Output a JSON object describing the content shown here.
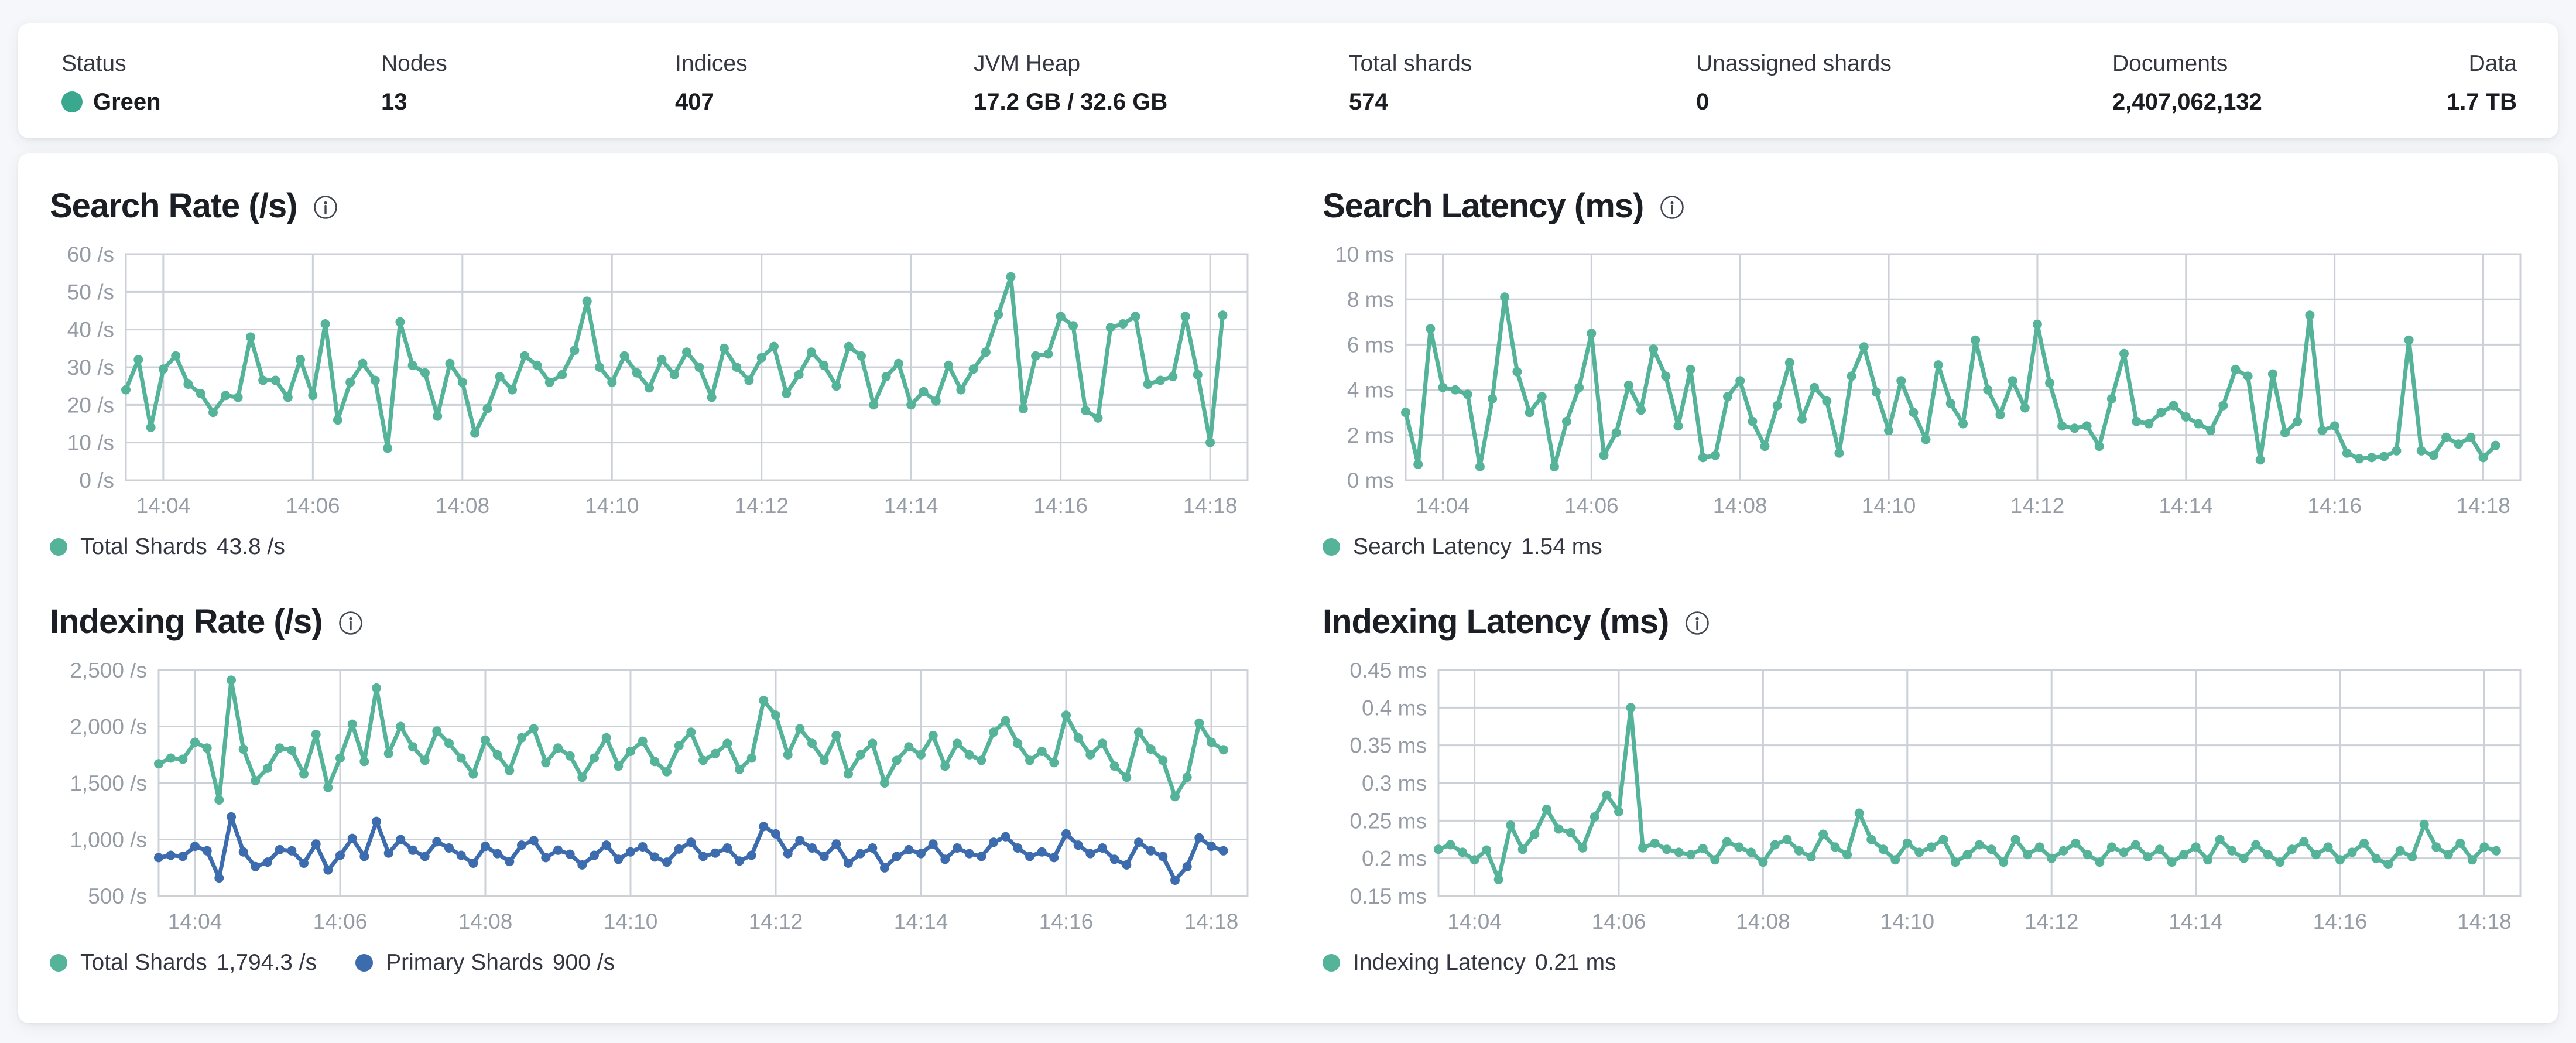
{
  "colors": {
    "teal": "#54B399",
    "blue": "#3D6CAE",
    "status_green": "#3AA78F",
    "grid": "#ccd0d7",
    "axis_text": "#969ca6",
    "legend_text": "#343741"
  },
  "summary": {
    "metrics": [
      {
        "label": "Status",
        "value": "Green"
      },
      {
        "label": "Nodes",
        "value": "13"
      },
      {
        "label": "Indices",
        "value": "407"
      },
      {
        "label": "JVM Heap",
        "value": "17.2 GB / 32.6 GB"
      },
      {
        "label": "Total shards",
        "value": "574"
      },
      {
        "label": "Unassigned shards",
        "value": "0"
      },
      {
        "label": "Documents",
        "value": "2,407,062,132"
      },
      {
        "label": "Data",
        "value": "1.7 TB"
      }
    ]
  },
  "chart_data": [
    {
      "type": "line",
      "title": "Search Rate (/s)",
      "x_ticks": [
        "14:04",
        "14:06",
        "14:08",
        "14:10",
        "14:12",
        "14:14",
        "14:16",
        "14:18"
      ],
      "x_tick_idx": [
        3,
        15,
        27,
        39,
        51,
        63,
        75,
        87
      ],
      "x_domain": 90,
      "ylim": [
        0,
        60
      ],
      "y_ticks": [
        0,
        10,
        20,
        30,
        40,
        50,
        60
      ],
      "y_tick_labels": [
        "0 /s",
        "10 /s",
        "20 /s",
        "30 /s",
        "40 /s",
        "50 /s",
        "60 /s"
      ],
      "grid": true,
      "legend_position": "bottom",
      "series": [
        {
          "name": "Total Shards",
          "color": "#54B399",
          "values": [
            24,
            32,
            14,
            29.5,
            33,
            25.5,
            23,
            18,
            22.5,
            22,
            38,
            26.5,
            26.5,
            22,
            32,
            22.5,
            41.5,
            16,
            26,
            31,
            26.5,
            8.5,
            42,
            30.5,
            28.5,
            17,
            31,
            26,
            12.5,
            19,
            27.5,
            24,
            33,
            30.5,
            26,
            28,
            34.5,
            47.5,
            30,
            26,
            33,
            28.5,
            24.5,
            32,
            28,
            34,
            30,
            22,
            35,
            30,
            26.5,
            32.5,
            35.5,
            23,
            28,
            34,
            30.5,
            25,
            35.5,
            33,
            20,
            27.5,
            31,
            20,
            23.5,
            21,
            30.5,
            24,
            29.5,
            34,
            44,
            54,
            19,
            33,
            33.5,
            43.5,
            41,
            18.5,
            16.5,
            40.5,
            41.5,
            43.5,
            25.5,
            26.5,
            27.5,
            43.5,
            28,
            10,
            43.8
          ]
        }
      ],
      "legend": [
        {
          "label": "Total Shards",
          "value": "43.8 /s"
        }
      ]
    },
    {
      "type": "line",
      "title": "Search Latency (ms)",
      "x_ticks": [
        "14:04",
        "14:06",
        "14:08",
        "14:10",
        "14:12",
        "14:14",
        "14:16",
        "14:18"
      ],
      "x_tick_idx": [
        3,
        15,
        27,
        39,
        51,
        63,
        75,
        87
      ],
      "x_domain": 90,
      "ylim": [
        0,
        10
      ],
      "y_ticks": [
        0,
        2,
        4,
        6,
        8,
        10
      ],
      "y_tick_labels": [
        "0 ms",
        "2 ms",
        "4 ms",
        "6 ms",
        "8 ms",
        "10 ms"
      ],
      "grid": true,
      "legend_position": "bottom",
      "series": [
        {
          "name": "Search Latency",
          "color": "#54B399",
          "values": [
            3.0,
            0.7,
            6.7,
            4.1,
            4.0,
            3.8,
            0.6,
            3.6,
            8.1,
            4.8,
            3.0,
            3.7,
            0.6,
            2.6,
            4.1,
            6.5,
            1.1,
            2.1,
            4.2,
            3.1,
            5.8,
            4.6,
            2.4,
            4.9,
            1.0,
            1.1,
            3.7,
            4.4,
            2.6,
            1.5,
            3.3,
            5.2,
            2.7,
            4.1,
            3.5,
            1.2,
            4.6,
            5.9,
            3.9,
            2.2,
            4.4,
            3.0,
            1.8,
            5.1,
            3.4,
            2.5,
            6.2,
            4.0,
            2.9,
            4.4,
            3.2,
            6.9,
            4.3,
            2.4,
            2.3,
            2.4,
            1.5,
            3.6,
            5.6,
            2.6,
            2.5,
            3.0,
            3.3,
            2.8,
            2.5,
            2.2,
            3.3,
            4.9,
            4.6,
            0.9,
            4.7,
            2.1,
            2.6,
            7.3,
            2.2,
            2.4,
            1.2,
            0.95,
            1.0,
            1.05,
            1.3,
            6.2,
            1.3,
            1.1,
            1.9,
            1.6,
            1.9,
            1.0,
            1.54
          ]
        }
      ],
      "legend": [
        {
          "label": "Search Latency",
          "value": "1.54 ms"
        }
      ]
    },
    {
      "type": "line",
      "title": "Indexing Rate (/s)",
      "x_ticks": [
        "14:04",
        "14:06",
        "14:08",
        "14:10",
        "14:12",
        "14:14",
        "14:16",
        "14:18"
      ],
      "x_tick_idx": [
        3,
        15,
        27,
        39,
        51,
        63,
        75,
        87
      ],
      "x_domain": 90,
      "ylim": [
        500,
        2500
      ],
      "y_ticks": [
        500,
        1000,
        1500,
        2000,
        2500
      ],
      "y_tick_labels": [
        "500 /s",
        "1,000 /s",
        "1,500 /s",
        "2,000 /s",
        "2,500 /s"
      ],
      "grid": true,
      "legend_position": "bottom",
      "series": [
        {
          "name": "Total Shards",
          "color": "#54B399",
          "values": [
            1670,
            1720,
            1710,
            1860,
            1810,
            1350,
            2410,
            1800,
            1520,
            1630,
            1810,
            1790,
            1580,
            1930,
            1460,
            1720,
            2020,
            1690,
            2340,
            1760,
            2000,
            1820,
            1700,
            1960,
            1850,
            1720,
            1580,
            1880,
            1750,
            1610,
            1900,
            1980,
            1680,
            1810,
            1740,
            1550,
            1720,
            1900,
            1650,
            1780,
            1870,
            1690,
            1600,
            1830,
            1950,
            1700,
            1760,
            1850,
            1620,
            1720,
            2230,
            2100,
            1750,
            1980,
            1850,
            1700,
            1920,
            1580,
            1750,
            1850,
            1500,
            1700,
            1820,
            1750,
            1920,
            1650,
            1850,
            1750,
            1700,
            1950,
            2050,
            1850,
            1700,
            1780,
            1680,
            2100,
            1900,
            1750,
            1850,
            1650,
            1550,
            1950,
            1800,
            1700,
            1380,
            1550,
            2030,
            1860,
            1794.3
          ]
        },
        {
          "name": "Primary Shards",
          "color": "#3D6CAE",
          "values": [
            840,
            860,
            850,
            940,
            900,
            660,
            1200,
            890,
            760,
            800,
            910,
            900,
            790,
            960,
            730,
            860,
            1010,
            850,
            1160,
            880,
            1000,
            905,
            850,
            980,
            925,
            860,
            790,
            940,
            875,
            805,
            950,
            990,
            840,
            905,
            870,
            775,
            860,
            950,
            825,
            890,
            935,
            845,
            800,
            915,
            975,
            850,
            880,
            925,
            810,
            860,
            1115,
            1050,
            875,
            990,
            925,
            850,
            960,
            790,
            875,
            925,
            750,
            850,
            910,
            875,
            960,
            825,
            925,
            875,
            850,
            975,
            1025,
            925,
            850,
            890,
            840,
            1050,
            950,
            875,
            925,
            825,
            775,
            975,
            900,
            850,
            640,
            760,
            1015,
            940,
            900
          ]
        }
      ],
      "legend": [
        {
          "label": "Total Shards",
          "value": "1,794.3 /s"
        },
        {
          "label": "Primary Shards",
          "value": "900 /s"
        }
      ]
    },
    {
      "type": "line",
      "title": "Indexing Latency (ms)",
      "x_ticks": [
        "14:04",
        "14:06",
        "14:08",
        "14:10",
        "14:12",
        "14:14",
        "14:16",
        "14:18"
      ],
      "x_tick_idx": [
        3,
        15,
        27,
        39,
        51,
        63,
        75,
        87
      ],
      "x_domain": 90,
      "ylim": [
        0.15,
        0.45
      ],
      "y_ticks": [
        0.15,
        0.2,
        0.25,
        0.3,
        0.35,
        0.4,
        0.45
      ],
      "y_tick_labels": [
        "0.15 ms",
        "0.2 ms",
        "0.25 ms",
        "0.3 ms",
        "0.35 ms",
        "0.4 ms",
        "0.45 ms"
      ],
      "grid": true,
      "legend_position": "bottom",
      "series": [
        {
          "name": "Indexing Latency",
          "color": "#54B399",
          "values": [
            0.212,
            0.218,
            0.208,
            0.198,
            0.211,
            0.172,
            0.244,
            0.212,
            0.232,
            0.265,
            0.239,
            0.234,
            0.214,
            0.255,
            0.284,
            0.262,
            0.4,
            0.214,
            0.22,
            0.212,
            0.208,
            0.205,
            0.213,
            0.198,
            0.222,
            0.215,
            0.208,
            0.195,
            0.218,
            0.225,
            0.21,
            0.202,
            0.232,
            0.215,
            0.205,
            0.26,
            0.225,
            0.212,
            0.198,
            0.22,
            0.208,
            0.215,
            0.225,
            0.195,
            0.205,
            0.218,
            0.212,
            0.195,
            0.225,
            0.205,
            0.215,
            0.2,
            0.21,
            0.22,
            0.205,
            0.195,
            0.215,
            0.208,
            0.218,
            0.202,
            0.212,
            0.195,
            0.205,
            0.215,
            0.198,
            0.225,
            0.21,
            0.2,
            0.218,
            0.205,
            0.195,
            0.212,
            0.222,
            0.205,
            0.215,
            0.198,
            0.208,
            0.22,
            0.2,
            0.192,
            0.21,
            0.202,
            0.245,
            0.215,
            0.205,
            0.22,
            0.198,
            0.215,
            0.21
          ]
        }
      ],
      "legend": [
        {
          "label": "Indexing Latency",
          "value": "0.21 ms"
        }
      ]
    }
  ]
}
